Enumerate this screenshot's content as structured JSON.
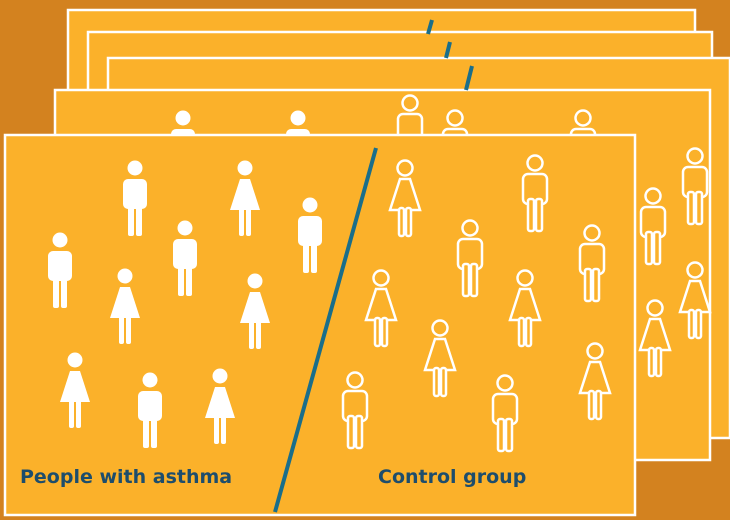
{
  "labels": {
    "left": "People with asthma",
    "right": "Control group"
  }
}
